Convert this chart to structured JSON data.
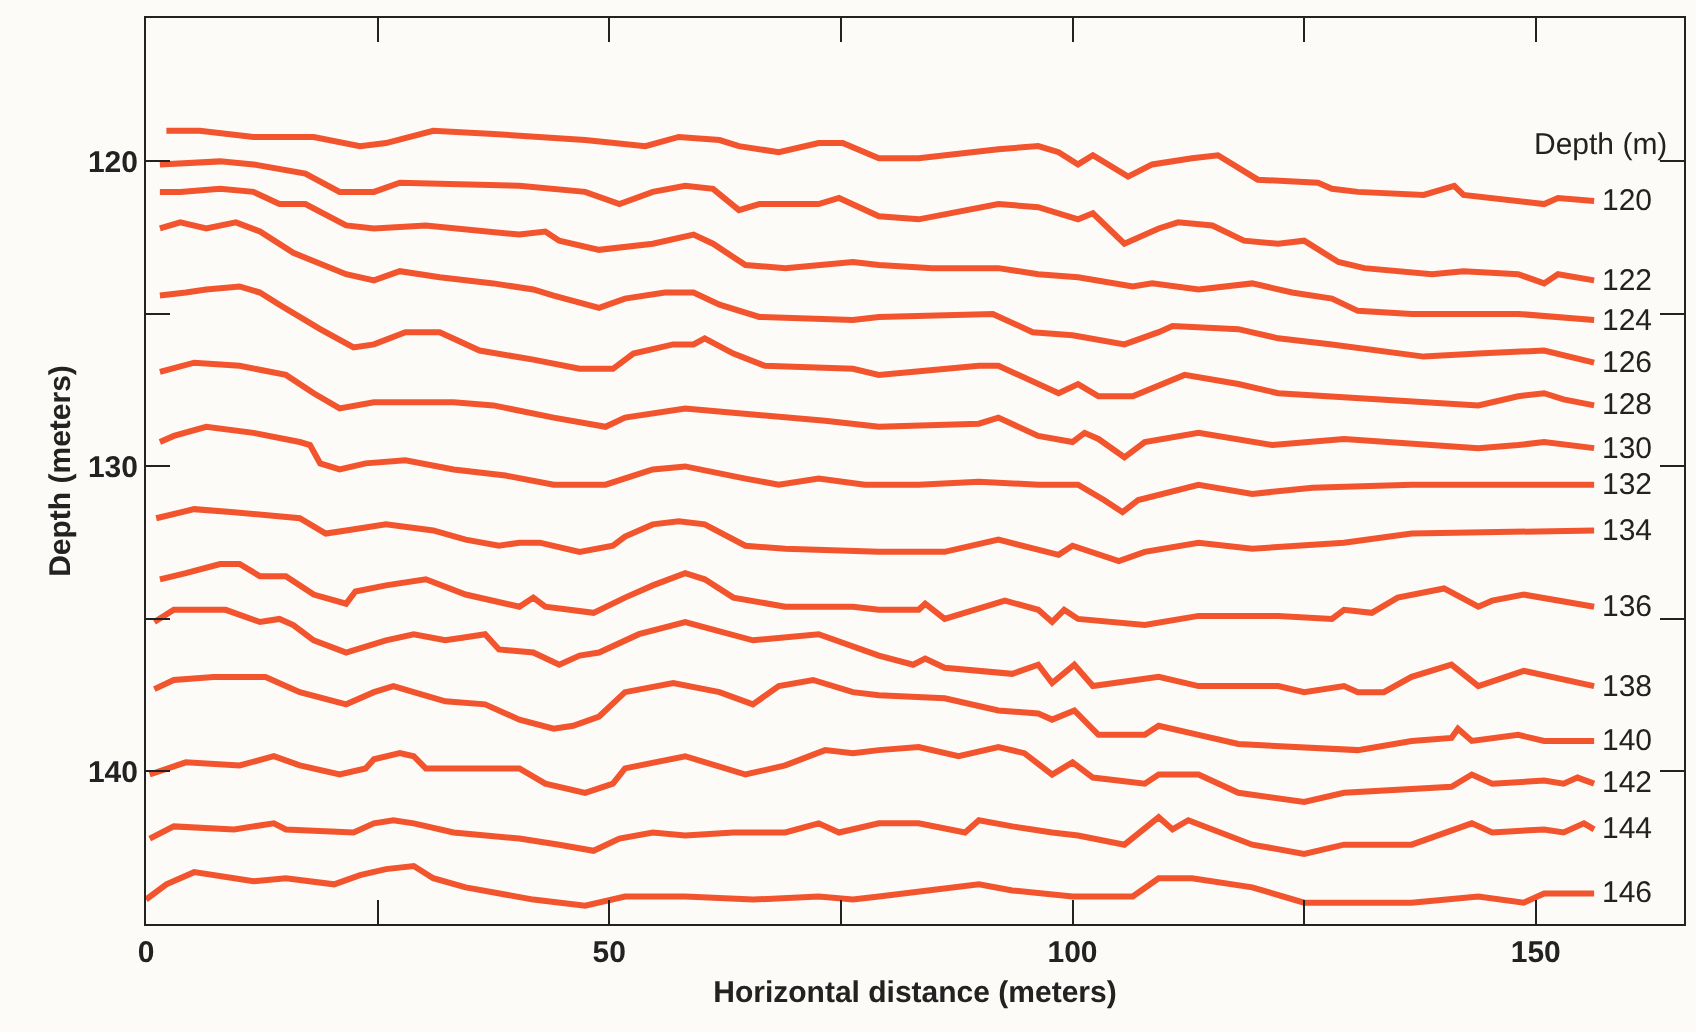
{
  "chart_data": {
    "type": "line",
    "xlabel": "Horizontal distance (meters)",
    "ylabel": "Depth (meters)",
    "legend_title": "Depth (m)",
    "xlim": [
      0,
      166
    ],
    "xticks": [
      0,
      {
        "value": 25,
        "label": null
      },
      50,
      {
        "value": 75,
        "label": null
      },
      100,
      {
        "value": 125,
        "label": null
      },
      150
    ],
    "ylim": [
      145,
      115.3
    ],
    "yticks": [
      120,
      {
        "value": 125,
        "label": null
      },
      130,
      {
        "value": 135,
        "label": null
      },
      140
    ],
    "grid": false,
    "series": [
      {
        "name": "120",
        "color": "#f2542d",
        "x": [
          2.2,
          5.8,
          11.6,
          18.1,
          23.1,
          25.9,
          31.0,
          37.5,
          47.4,
          53.9,
          57.5,
          61.9,
          64.0,
          68.3,
          72.6,
          75.2,
          79.1,
          83.4,
          92.0,
          96.3,
          98.5,
          100.6,
          102.2,
          106.0,
          108.6,
          112.9,
          115.7,
          120.0,
          126.5,
          128.0,
          130.8,
          137.9,
          141.2,
          142.2,
          150.9,
          152.4,
          156.3
        ],
        "values": [
          119.0,
          119.0,
          119.2,
          119.2,
          119.5,
          119.4,
          119.0,
          119.1,
          119.3,
          119.5,
          119.2,
          119.3,
          119.5,
          119.7,
          119.4,
          119.4,
          119.9,
          119.9,
          119.6,
          119.5,
          119.7,
          120.1,
          119.8,
          120.5,
          120.1,
          119.9,
          119.8,
          120.6,
          120.7,
          120.9,
          121.0,
          121.1,
          120.8,
          121.1,
          121.4,
          121.2,
          121.3
        ]
      },
      {
        "name": "122",
        "color": "#f2542d",
        "x": [
          1.5,
          8.0,
          11.6,
          17.2,
          20.9,
          24.6,
          27.4,
          40.3,
          47.4,
          51.1,
          54.7,
          58.2,
          61.2,
          64.0,
          66.2,
          72.6,
          74.8,
          79.1,
          83.4,
          92.0,
          96.3,
          100.6,
          102.2,
          105.6,
          109.3,
          111.4,
          115.1,
          118.5,
          122.2,
          125.0,
          128.7,
          131.5,
          138.8,
          142.2,
          148.1,
          150.9,
          152.4,
          156.3
        ],
        "values": [
          120.1,
          120.0,
          120.1,
          120.4,
          121.0,
          121.0,
          120.7,
          120.8,
          121.0,
          121.4,
          121.0,
          120.8,
          120.9,
          121.6,
          121.4,
          121.4,
          121.2,
          121.8,
          121.9,
          121.4,
          121.5,
          121.9,
          121.7,
          122.7,
          122.2,
          122.0,
          122.1,
          122.6,
          122.7,
          122.6,
          123.3,
          123.5,
          123.7,
          123.6,
          123.7,
          124.0,
          123.7,
          123.9
        ]
      },
      {
        "name": "124",
        "color": "#f2542d",
        "x": [
          1.5,
          3.7,
          8.0,
          11.6,
          14.4,
          17.2,
          21.6,
          24.6,
          30.2,
          40.3,
          43.1,
          44.6,
          48.9,
          54.7,
          59.1,
          61.2,
          64.7,
          69.0,
          76.3,
          79.1,
          84.9,
          92.0,
          96.3,
          100.6,
          106.5,
          108.6,
          113.6,
          119.4,
          123.7,
          128.0,
          130.8,
          136.6,
          148.1,
          156.3
        ],
        "values": [
          121.0,
          121.0,
          120.9,
          121.0,
          121.4,
          121.4,
          122.1,
          122.2,
          122.1,
          122.4,
          122.3,
          122.6,
          122.9,
          122.7,
          122.4,
          122.7,
          123.4,
          123.5,
          123.3,
          123.4,
          123.5,
          123.5,
          123.7,
          123.8,
          124.1,
          124.0,
          124.2,
          124.0,
          124.3,
          124.5,
          124.9,
          125.0,
          125.0,
          125.2
        ]
      },
      {
        "name": "126",
        "color": "#f2542d",
        "x": [
          1.5,
          3.7,
          6.5,
          9.7,
          12.3,
          15.9,
          21.6,
          24.6,
          27.4,
          31.7,
          37.5,
          41.8,
          44.0,
          48.9,
          51.7,
          56.0,
          59.1,
          61.9,
          66.2,
          76.3,
          79.1,
          91.4,
          95.7,
          100.0,
          105.6,
          109.3,
          110.8,
          117.9,
          122.2,
          128.0,
          137.9,
          143.8,
          150.9,
          156.3
        ],
        "values": [
          122.2,
          122.0,
          122.2,
          122.0,
          122.3,
          123.0,
          123.7,
          123.9,
          123.6,
          123.8,
          124.0,
          124.2,
          124.4,
          124.8,
          124.5,
          124.3,
          124.3,
          124.7,
          125.1,
          125.2,
          125.1,
          125.0,
          125.6,
          125.7,
          126.0,
          125.6,
          125.4,
          125.5,
          125.8,
          126.0,
          126.4,
          126.3,
          126.2,
          126.6
        ]
      },
      {
        "name": "128",
        "color": "#f2542d",
        "x": [
          1.5,
          4.3,
          6.5,
          10.1,
          12.3,
          14.4,
          18.8,
          22.4,
          24.6,
          28.0,
          31.7,
          36.0,
          41.8,
          46.8,
          50.4,
          52.6,
          56.9,
          59.1,
          60.3,
          63.4,
          66.8,
          76.3,
          79.1,
          89.9,
          92.0,
          98.5,
          100.6,
          102.8,
          106.5,
          112.1,
          117.9,
          122.2,
          143.8,
          148.1,
          150.9,
          153.0,
          156.3
        ],
        "values": [
          124.4,
          124.3,
          124.2,
          124.1,
          124.3,
          124.7,
          125.5,
          126.1,
          126.0,
          125.6,
          125.6,
          126.2,
          126.5,
          126.8,
          126.8,
          126.3,
          126.0,
          126.0,
          125.8,
          126.3,
          126.7,
          126.8,
          127.0,
          126.7,
          126.7,
          127.6,
          127.3,
          127.7,
          127.7,
          127.0,
          127.3,
          127.6,
          128.0,
          127.7,
          127.6,
          127.8,
          128.0
        ]
      },
      {
        "name": "130",
        "color": "#f2542d",
        "x": [
          1.5,
          5.2,
          10.1,
          15.1,
          18.1,
          20.9,
          24.6,
          33.2,
          37.5,
          44.0,
          49.6,
          51.7,
          58.2,
          65.5,
          73.3,
          79.1,
          89.9,
          92.0,
          96.3,
          100.0,
          101.3,
          102.8,
          105.6,
          107.8,
          113.6,
          121.6,
          129.3,
          143.8,
          148.1,
          150.9,
          156.3
        ],
        "values": [
          126.9,
          126.6,
          126.7,
          127.0,
          127.6,
          128.1,
          127.9,
          127.9,
          128.0,
          128.4,
          128.7,
          128.4,
          128.1,
          128.3,
          128.5,
          128.7,
          128.6,
          128.4,
          129.0,
          129.2,
          128.9,
          129.1,
          129.7,
          129.2,
          128.9,
          129.3,
          129.1,
          129.4,
          129.3,
          129.2,
          129.4
        ]
      },
      {
        "name": "132",
        "color": "#f2542d",
        "x": [
          1.5,
          3.0,
          6.5,
          11.6,
          16.6,
          17.7,
          18.8,
          20.9,
          23.7,
          28.0,
          33.2,
          38.8,
          44.0,
          49.6,
          54.7,
          58.2,
          64.7,
          68.3,
          72.6,
          77.6,
          83.4,
          89.9,
          96.3,
          100.6,
          103.4,
          105.4,
          107.1,
          113.6,
          119.4,
          125.9,
          136.6,
          156.3
        ],
        "values": [
          129.2,
          129.0,
          128.7,
          128.9,
          129.2,
          129.3,
          129.9,
          130.1,
          129.9,
          129.8,
          130.1,
          130.3,
          130.6,
          130.6,
          130.1,
          130.0,
          130.4,
          130.6,
          130.4,
          130.6,
          130.6,
          130.5,
          130.6,
          130.6,
          131.1,
          131.5,
          131.1,
          130.6,
          130.9,
          130.7,
          130.6,
          130.6
        ]
      },
      {
        "name": "134",
        "color": "#f2542d",
        "x": [
          1.1,
          5.2,
          9.5,
          16.6,
          19.4,
          21.6,
          25.9,
          31.0,
          34.5,
          38.1,
          40.3,
          42.5,
          46.8,
          50.4,
          51.7,
          54.7,
          57.5,
          60.3,
          64.7,
          69.0,
          79.1,
          86.2,
          92.0,
          98.5,
          100.0,
          105.0,
          107.8,
          113.6,
          119.4,
          129.3,
          136.6,
          156.3
        ],
        "values": [
          131.7,
          131.4,
          131.5,
          131.7,
          132.2,
          132.1,
          131.9,
          132.1,
          132.4,
          132.6,
          132.5,
          132.5,
          132.8,
          132.6,
          132.3,
          131.9,
          131.8,
          131.9,
          132.6,
          132.7,
          132.8,
          132.8,
          132.4,
          132.9,
          132.6,
          133.1,
          132.8,
          132.5,
          132.7,
          132.5,
          132.2,
          132.1
        ]
      },
      {
        "name": "136",
        "color": "#f2542d",
        "x": [
          1.5,
          4.3,
          8.0,
          10.1,
          12.3,
          15.1,
          18.1,
          21.6,
          22.6,
          25.9,
          30.2,
          34.5,
          40.3,
          41.8,
          43.1,
          48.3,
          51.7,
          54.7,
          58.2,
          60.3,
          63.4,
          69.0,
          76.3,
          79.1,
          83.4,
          84.1,
          86.2,
          92.7,
          96.3,
          97.8,
          99.1,
          100.6,
          107.8,
          113.6,
          122.2,
          128.0,
          129.3,
          132.3,
          135.1,
          140.1,
          143.8,
          145.3,
          148.7,
          156.3
        ],
        "values": [
          133.7,
          133.5,
          133.2,
          133.2,
          133.6,
          133.6,
          134.2,
          134.5,
          134.1,
          133.9,
          133.7,
          134.2,
          134.6,
          134.3,
          134.6,
          134.8,
          134.3,
          133.9,
          133.5,
          133.7,
          134.3,
          134.6,
          134.6,
          134.7,
          134.7,
          134.5,
          135.0,
          134.4,
          134.7,
          135.1,
          134.7,
          135.0,
          135.2,
          134.9,
          134.9,
          135.0,
          134.7,
          134.8,
          134.3,
          134.0,
          134.6,
          134.4,
          134.2,
          134.6
        ]
      },
      {
        "name": "138",
        "color": "#f2542d",
        "x": [
          0.9,
          3.0,
          8.6,
          12.3,
          14.4,
          15.9,
          18.1,
          21.6,
          25.9,
          28.9,
          32.3,
          34.5,
          36.6,
          38.1,
          41.8,
          44.6,
          46.8,
          48.9,
          53.2,
          58.2,
          65.5,
          72.6,
          79.1,
          82.8,
          84.1,
          86.2,
          93.5,
          96.3,
          97.8,
          100.2,
          102.2,
          109.3,
          113.6,
          122.2,
          125.0,
          129.3,
          130.8,
          133.6,
          136.6,
          140.9,
          143.8,
          148.7,
          156.3
        ],
        "values": [
          135.1,
          134.7,
          134.7,
          135.1,
          135.0,
          135.2,
          135.7,
          136.1,
          135.7,
          135.5,
          135.7,
          135.6,
          135.5,
          136.0,
          136.1,
          136.5,
          136.2,
          136.1,
          135.5,
          135.1,
          135.7,
          135.5,
          136.2,
          136.5,
          136.3,
          136.6,
          136.8,
          136.5,
          137.1,
          136.5,
          137.2,
          136.9,
          137.2,
          137.2,
          137.4,
          137.2,
          137.4,
          137.4,
          136.9,
          136.5,
          137.2,
          136.7,
          137.2
        ]
      },
      {
        "name": "140",
        "color": "#f2542d",
        "x": [
          0.9,
          3.0,
          7.3,
          12.9,
          16.6,
          21.6,
          24.6,
          26.7,
          28.9,
          32.3,
          36.6,
          40.3,
          44.0,
          46.1,
          48.9,
          51.7,
          56.9,
          61.9,
          65.5,
          68.3,
          72.0,
          76.3,
          79.1,
          86.2,
          92.0,
          96.3,
          97.8,
          100.2,
          102.8,
          107.8,
          109.3,
          113.6,
          117.9,
          130.8,
          136.6,
          140.9,
          141.6,
          143.1,
          148.1,
          150.9,
          156.3
        ],
        "values": [
          137.3,
          137.0,
          136.9,
          136.9,
          137.4,
          137.8,
          137.4,
          137.2,
          137.4,
          137.7,
          137.8,
          138.3,
          138.6,
          138.5,
          138.2,
          137.4,
          137.1,
          137.4,
          137.8,
          137.2,
          137.0,
          137.4,
          137.5,
          137.6,
          138.0,
          138.1,
          138.3,
          138.0,
          138.8,
          138.8,
          138.5,
          138.8,
          139.1,
          139.3,
          139.0,
          138.9,
          138.6,
          139.0,
          138.8,
          139.0,
          139.0
        ]
      },
      {
        "name": "142",
        "color": "#f2542d",
        "x": [
          0.4,
          4.3,
          10.1,
          13.8,
          16.6,
          20.9,
          23.7,
          24.6,
          27.4,
          28.9,
          30.2,
          40.3,
          43.1,
          47.4,
          50.4,
          51.7,
          58.2,
          64.7,
          69.0,
          73.3,
          76.3,
          79.1,
          83.4,
          87.7,
          92.0,
          94.8,
          97.8,
          100.0,
          102.2,
          107.8,
          109.3,
          113.6,
          117.9,
          125.0,
          129.3,
          140.9,
          143.1,
          145.3,
          150.9,
          153.0,
          154.5,
          156.3
        ],
        "values": [
          140.1,
          139.7,
          139.8,
          139.5,
          139.8,
          140.1,
          139.9,
          139.6,
          139.4,
          139.5,
          139.9,
          139.9,
          140.4,
          140.7,
          140.4,
          139.9,
          139.5,
          140.1,
          139.8,
          139.3,
          139.4,
          139.3,
          139.2,
          139.5,
          139.2,
          139.4,
          140.1,
          139.7,
          140.2,
          140.4,
          140.1,
          140.1,
          140.7,
          141.0,
          140.7,
          140.5,
          140.1,
          140.4,
          140.3,
          140.4,
          140.2,
          140.4
        ]
      },
      {
        "name": "144",
        "color": "#f2542d",
        "x": [
          0.4,
          3.0,
          9.5,
          13.8,
          15.1,
          22.4,
          24.6,
          26.7,
          28.9,
          33.2,
          40.3,
          44.6,
          48.3,
          51.1,
          54.7,
          58.2,
          63.4,
          69.0,
          72.6,
          74.8,
          79.1,
          83.4,
          88.4,
          89.9,
          93.5,
          97.8,
          100.6,
          105.6,
          109.3,
          110.8,
          112.5,
          115.1,
          119.4,
          125.0,
          129.3,
          136.6,
          143.1,
          145.3,
          150.9,
          153.0,
          155.2,
          156.3
        ],
        "values": [
          142.2,
          141.8,
          141.9,
          141.7,
          141.9,
          142.0,
          141.7,
          141.6,
          141.7,
          142.0,
          142.2,
          142.4,
          142.6,
          142.2,
          142.0,
          142.1,
          142.0,
          142.0,
          141.7,
          142.0,
          141.7,
          141.7,
          142.0,
          141.6,
          141.8,
          142.0,
          142.1,
          142.4,
          141.5,
          141.9,
          141.6,
          141.9,
          142.4,
          142.7,
          142.4,
          142.4,
          141.7,
          142.0,
          141.9,
          142.0,
          141.7,
          141.9
        ]
      },
      {
        "name": "146",
        "color": "#f2542d",
        "x": [
          0.0,
          2.2,
          5.2,
          11.6,
          15.1,
          20.3,
          23.1,
          25.9,
          28.9,
          31.0,
          34.5,
          41.8,
          47.4,
          51.7,
          58.2,
          65.5,
          72.6,
          76.3,
          79.1,
          89.9,
          93.5,
          100.0,
          106.5,
          109.3,
          112.9,
          119.4,
          125.0,
          136.6,
          143.8,
          148.7,
          150.9,
          156.3
        ],
        "values": [
          144.2,
          143.7,
          143.3,
          143.6,
          143.5,
          143.7,
          143.4,
          143.2,
          143.1,
          143.5,
          143.8,
          144.2,
          144.4,
          144.1,
          144.1,
          144.2,
          144.1,
          144.2,
          144.1,
          143.7,
          143.9,
          144.1,
          144.1,
          143.5,
          143.5,
          143.8,
          144.3,
          144.3,
          144.1,
          144.3,
          144.0,
          144.0
        ]
      }
    ]
  }
}
